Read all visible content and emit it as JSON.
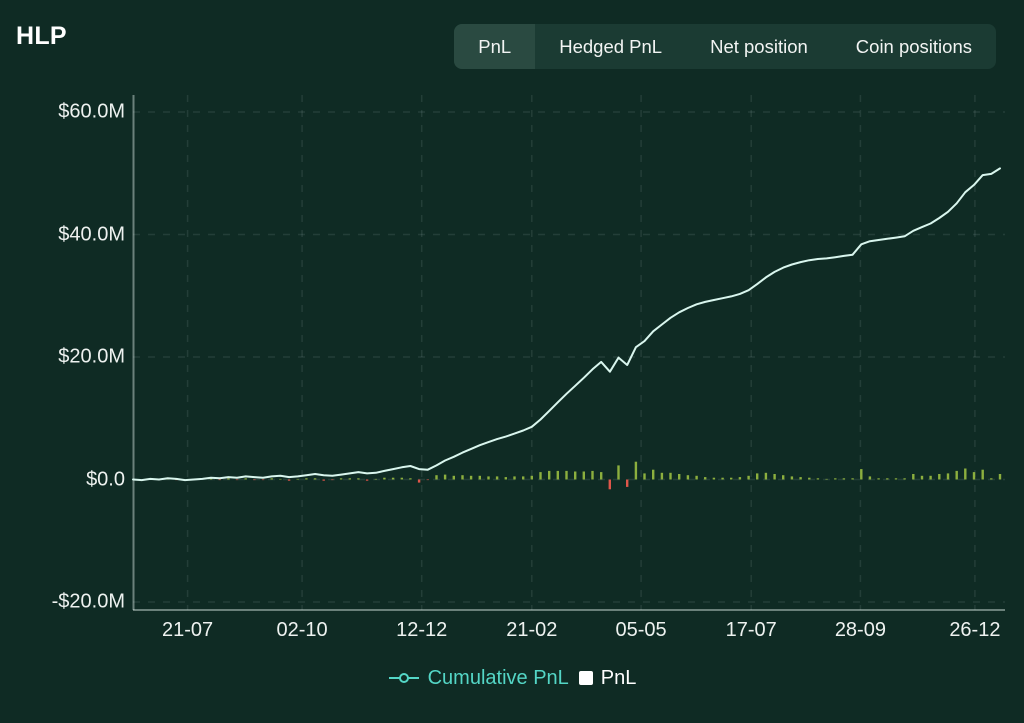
{
  "header": {
    "title": "HLP"
  },
  "tabs": {
    "items": [
      {
        "label": "PnL",
        "active": true
      },
      {
        "label": "Hedged PnL",
        "active": false
      },
      {
        "label": "Net position",
        "active": false
      },
      {
        "label": "Coin positions",
        "active": false
      }
    ]
  },
  "legend": {
    "cumulative_label": "Cumulative PnL",
    "pnl_label": "PnL"
  },
  "colors": {
    "background": "#0f2b24",
    "tab_bar": "#1b3b33",
    "tab_active": "#2a4a41",
    "text": "#f2f4f3",
    "accent_mint": "#54d6c6",
    "line": "#d9f6ee",
    "bar_positive": "#8caf3e",
    "bar_negative": "#e0564a",
    "grid": "rgba(214,240,232,0.10)",
    "axis": "rgba(220,235,230,0.45)"
  },
  "chart_data": {
    "type": "line+bar",
    "title": "",
    "xlabel": "",
    "ylabel": "",
    "ylim": [
      -20,
      60
    ],
    "units": "USD millions",
    "grid": "dashed",
    "legend_position": "bottom-center",
    "y_ticks": [
      {
        "label": "$60.0M",
        "value": 60
      },
      {
        "label": "$40.0M",
        "value": 40
      },
      {
        "label": "$20.0M",
        "value": 20
      },
      {
        "label": "$0.0",
        "value": 0
      },
      {
        "label": "-$20.0M",
        "value": -20
      }
    ],
    "x_ticks": [
      {
        "label": "21-07",
        "t": 0.063
      },
      {
        "label": "02-10",
        "t": 0.195
      },
      {
        "label": "12-12",
        "t": 0.333
      },
      {
        "label": "21-02",
        "t": 0.46
      },
      {
        "label": "05-05",
        "t": 0.586
      },
      {
        "label": "17-07",
        "t": 0.713
      },
      {
        "label": "28-09",
        "t": 0.839
      },
      {
        "label": "26-12",
        "t": 0.971
      }
    ],
    "series": [
      {
        "name": "Cumulative PnL",
        "type": "line",
        "t_start": 0.0,
        "t_step": 0.01,
        "values": [
          0.0,
          -0.1,
          0.1,
          0.0,
          0.2,
          0.1,
          -0.1,
          0.0,
          0.1,
          0.3,
          0.2,
          0.4,
          0.3,
          0.5,
          0.4,
          0.3,
          0.5,
          0.6,
          0.4,
          0.5,
          0.7,
          0.9,
          0.7,
          0.6,
          0.8,
          1.0,
          1.2,
          1.0,
          1.1,
          1.4,
          1.7,
          2.0,
          2.2,
          1.7,
          1.6,
          2.3,
          3.1,
          3.7,
          4.4,
          5.0,
          5.6,
          6.1,
          6.6,
          7.0,
          7.5,
          8.0,
          8.6,
          9.8,
          11.2,
          12.6,
          14.0,
          15.3,
          16.6,
          18.0,
          19.2,
          17.6,
          19.9,
          18.7,
          21.6,
          22.6,
          24.2,
          25.3,
          26.4,
          27.3,
          28.0,
          28.6,
          29.0,
          29.3,
          29.6,
          29.9,
          30.3,
          30.9,
          31.9,
          33.0,
          33.9,
          34.6,
          35.1,
          35.5,
          35.8,
          36.0,
          36.1,
          36.3,
          36.5,
          36.7,
          38.4,
          38.9,
          39.1,
          39.3,
          39.5,
          39.7,
          40.6,
          41.2,
          41.8,
          42.7,
          43.7,
          45.1,
          46.9,
          48.1,
          49.7,
          49.9,
          50.8
        ]
      },
      {
        "name": "PnL",
        "type": "bar",
        "t_start": 0.01,
        "t_step": 0.01,
        "values": [
          -0.1,
          0.2,
          -0.1,
          0.2,
          -0.1,
          -0.2,
          0.1,
          0.1,
          0.2,
          -0.1,
          0.2,
          -0.1,
          0.2,
          -0.1,
          -0.1,
          0.2,
          0.1,
          -0.2,
          0.1,
          0.2,
          0.2,
          -0.2,
          -0.1,
          0.2,
          0.2,
          0.2,
          -0.2,
          0.1,
          0.3,
          0.3,
          0.3,
          0.2,
          -0.5,
          -0.1,
          0.7,
          0.8,
          0.6,
          0.7,
          0.6,
          0.6,
          0.5,
          0.5,
          0.4,
          0.5,
          0.5,
          0.6,
          1.2,
          1.4,
          1.4,
          1.4,
          1.3,
          1.3,
          1.4,
          1.2,
          -1.6,
          2.3,
          -1.2,
          2.9,
          1.0,
          1.6,
          1.1,
          1.1,
          0.9,
          0.7,
          0.6,
          0.4,
          0.3,
          0.3,
          0.3,
          0.4,
          0.6,
          1.0,
          1.1,
          0.9,
          0.7,
          0.5,
          0.4,
          0.3,
          0.2,
          0.1,
          0.2,
          0.2,
          0.2,
          1.7,
          0.5,
          0.2,
          0.2,
          0.2,
          0.2,
          0.9,
          0.6,
          0.6,
          0.9,
          1.0,
          1.4,
          1.8,
          1.2,
          1.6,
          0.2,
          0.9
        ]
      }
    ]
  }
}
